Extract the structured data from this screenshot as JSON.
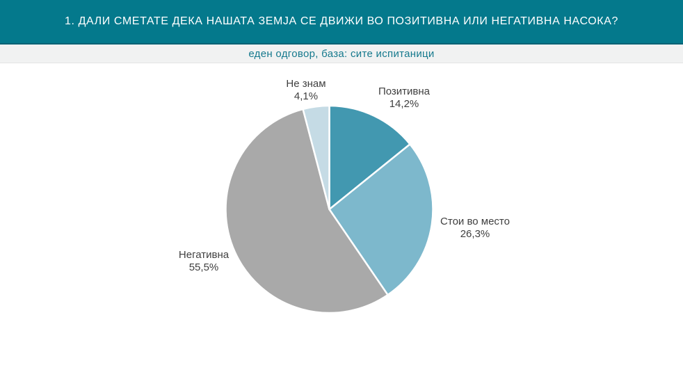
{
  "header": {
    "title": "1. ДАЛИ СМЕТАТЕ ДЕКА НАШАТА ЗЕМЈА СЕ ДВИЖИ ВО ПОЗИТИВНА ИЛИ НЕГАТИВНА НАСОКА?",
    "subtitle": "еден одговор, база: сите испитаници",
    "title_bg_color": "#04798C",
    "title_text_color": "#FFFFFF",
    "subtitle_bg_color": "#F1F2F2",
    "subtitle_text_color": "#15798D"
  },
  "chart_data": {
    "type": "pie",
    "title": "1. ДАЛИ СМЕТАТЕ ДЕКА НАШАТА ЗЕМЈА СЕ ДВИЖИ ВО ПОЗИТИВНА ИЛИ НЕГАТИВНА НАСОКА?",
    "subtitle": "еден одговор, база: сите испитаници",
    "start_angle_deg": 0,
    "direction": "clockwise",
    "slice_border_color": "#FFFFFF",
    "label_text_color": "#3F3F3F",
    "slices": [
      {
        "label": "Позитивна",
        "value": 14.2,
        "pct_label": "14,2%",
        "color": "#4298B0"
      },
      {
        "label": "Стои во место",
        "value": 26.3,
        "pct_label": "26,3%",
        "color": "#7DB8CC"
      },
      {
        "label": "Негативна",
        "value": 55.5,
        "pct_label": "55,5%",
        "color": "#A9A9A9"
      },
      {
        "label": "Не знам",
        "value": 4.1,
        "pct_label": "4,1%",
        "color": "#C5DBE5"
      }
    ]
  }
}
